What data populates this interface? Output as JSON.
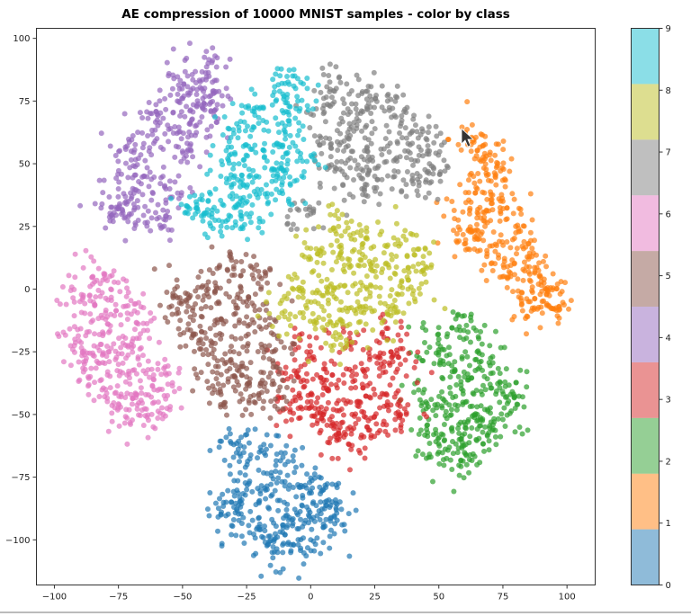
{
  "chart_data": {
    "type": "scatter",
    "title": "AE compression of 10000 MNIST samples - color by class",
    "xlabel": "",
    "ylabel": "",
    "xlim": [
      -107,
      111
    ],
    "ylim": [
      -118,
      104
    ],
    "xticks": [
      -100,
      -75,
      -50,
      -25,
      0,
      25,
      50,
      75,
      100
    ],
    "yticks": [
      -100,
      -75,
      -50,
      -25,
      0,
      25,
      50,
      75,
      100
    ],
    "grid": false,
    "colorbar": {
      "ticks": [
        0,
        1,
        2,
        3,
        4,
        5,
        6,
        7,
        8,
        9
      ],
      "placement": "right"
    },
    "series": [
      {
        "class": 0,
        "color": "#1f77b4",
        "points": [
          [
            -30,
            -62
          ],
          [
            -20,
            -65
          ],
          [
            -10,
            -70
          ],
          [
            -25,
            -80
          ],
          [
            -15,
            -82
          ],
          [
            -5,
            -78
          ],
          [
            5,
            -80
          ],
          [
            10,
            -88
          ],
          [
            -30,
            -92
          ],
          [
            -20,
            -95
          ],
          [
            -10,
            -98
          ],
          [
            0,
            -100
          ],
          [
            -5,
            -90
          ],
          [
            -15,
            -105
          ],
          [
            5,
            -95
          ],
          [
            -33,
            -85
          ]
        ]
      },
      {
        "class": 1,
        "color": "#ff7f0e",
        "points": [
          [
            63,
            60
          ],
          [
            68,
            52
          ],
          [
            72,
            45
          ],
          [
            65,
            40
          ],
          [
            75,
            35
          ],
          [
            62,
            30
          ],
          [
            68,
            25
          ],
          [
            80,
            25
          ],
          [
            60,
            18
          ],
          [
            72,
            15
          ],
          [
            85,
            12
          ],
          [
            78,
            5
          ],
          [
            90,
            3
          ],
          [
            85,
            -5
          ],
          [
            95,
            -8
          ],
          [
            92,
            -2
          ]
        ]
      },
      {
        "class": 2,
        "color": "#2ca02c",
        "points": [
          [
            50,
            -20
          ],
          [
            58,
            -15
          ],
          [
            65,
            -25
          ],
          [
            52,
            -30
          ],
          [
            60,
            -35
          ],
          [
            70,
            -38
          ],
          [
            78,
            -42
          ],
          [
            45,
            -45
          ],
          [
            55,
            -48
          ],
          [
            65,
            -50
          ],
          [
            75,
            -52
          ],
          [
            48,
            -58
          ],
          [
            58,
            -60
          ],
          [
            68,
            -55
          ],
          [
            50,
            -65
          ],
          [
            62,
            -68
          ]
        ]
      },
      {
        "class": 3,
        "color": "#d62728",
        "points": [
          [
            0,
            -25
          ],
          [
            15,
            -22
          ],
          [
            30,
            -20
          ],
          [
            -5,
            -35
          ],
          [
            8,
            -38
          ],
          [
            22,
            -32
          ],
          [
            35,
            -30
          ],
          [
            -8,
            -48
          ],
          [
            5,
            -50
          ],
          [
            18,
            -45
          ],
          [
            30,
            -45
          ],
          [
            10,
            -58
          ],
          [
            22,
            -55
          ],
          [
            35,
            -50
          ],
          [
            15,
            -62
          ],
          [
            0,
            -42
          ]
        ]
      },
      {
        "class": 4,
        "color": "#9467bd",
        "points": [
          [
            -40,
            90
          ],
          [
            -48,
            85
          ],
          [
            -38,
            78
          ],
          [
            -52,
            75
          ],
          [
            -62,
            70
          ],
          [
            -45,
            65
          ],
          [
            -60,
            60
          ],
          [
            -70,
            55
          ],
          [
            -50,
            55
          ],
          [
            -65,
            45
          ],
          [
            -75,
            40
          ],
          [
            -55,
            40
          ],
          [
            -70,
            30
          ],
          [
            -60,
            28
          ],
          [
            -75,
            32
          ],
          [
            -42,
            72
          ]
        ]
      },
      {
        "class": 5,
        "color": "#8c564b",
        "points": [
          [
            -30,
            8
          ],
          [
            -20,
            5
          ],
          [
            -40,
            0
          ],
          [
            -25,
            -5
          ],
          [
            -48,
            -2
          ],
          [
            -35,
            -12
          ],
          [
            -20,
            -15
          ],
          [
            -45,
            -18
          ],
          [
            -30,
            -25
          ],
          [
            -15,
            -25
          ],
          [
            -40,
            -30
          ],
          [
            -25,
            -35
          ],
          [
            -15,
            -38
          ],
          [
            -35,
            -42
          ],
          [
            -22,
            -45
          ],
          [
            -52,
            -8
          ]
        ]
      },
      {
        "class": 6,
        "color": "#e377c2",
        "points": [
          [
            -85,
            5
          ],
          [
            -78,
            0
          ],
          [
            -90,
            -5
          ],
          [
            -80,
            -12
          ],
          [
            -70,
            -10
          ],
          [
            -92,
            -20
          ],
          [
            -82,
            -22
          ],
          [
            -70,
            -22
          ],
          [
            -88,
            -32
          ],
          [
            -75,
            -30
          ],
          [
            -62,
            -32
          ],
          [
            -80,
            -40
          ],
          [
            -68,
            -42
          ],
          [
            -58,
            -40
          ],
          [
            -62,
            -50
          ],
          [
            -72,
            -48
          ]
        ]
      },
      {
        "class": 7,
        "color": "#7f7f7f",
        "points": [
          [
            10,
            80
          ],
          [
            20,
            78
          ],
          [
            30,
            75
          ],
          [
            5,
            70
          ],
          [
            18,
            68
          ],
          [
            35,
            65
          ],
          [
            8,
            58
          ],
          [
            22,
            55
          ],
          [
            38,
            55
          ],
          [
            45,
            60
          ],
          [
            10,
            48
          ],
          [
            25,
            45
          ],
          [
            40,
            42
          ],
          [
            20,
            40
          ],
          [
            48,
            48
          ],
          [
            0,
            30
          ]
        ]
      },
      {
        "class": 8,
        "color": "#bcbd22",
        "points": [
          [
            10,
            22
          ],
          [
            22,
            20
          ],
          [
            35,
            18
          ],
          [
            0,
            12
          ],
          [
            15,
            10
          ],
          [
            28,
            8
          ],
          [
            42,
            10
          ],
          [
            -5,
            0
          ],
          [
            8,
            2
          ],
          [
            22,
            0
          ],
          [
            38,
            0
          ],
          [
            -8,
            -10
          ],
          [
            5,
            -12
          ],
          [
            18,
            -8
          ],
          [
            30,
            -10
          ],
          [
            10,
            -20
          ]
        ]
      },
      {
        "class": 9,
        "color": "#17becf",
        "points": [
          [
            -10,
            82
          ],
          [
            -5,
            75
          ],
          [
            -20,
            72
          ],
          [
            -10,
            65
          ],
          [
            -30,
            62
          ],
          [
            -18,
            58
          ],
          [
            -5,
            55
          ],
          [
            -28,
            50
          ],
          [
            -15,
            48
          ],
          [
            -30,
            42
          ],
          [
            -20,
            38
          ],
          [
            -40,
            35
          ],
          [
            -25,
            30
          ],
          [
            -45,
            30
          ],
          [
            -35,
            25
          ],
          [
            -8,
            42
          ]
        ]
      }
    ]
  },
  "cursor_icon": "mouse-pointer-icon"
}
